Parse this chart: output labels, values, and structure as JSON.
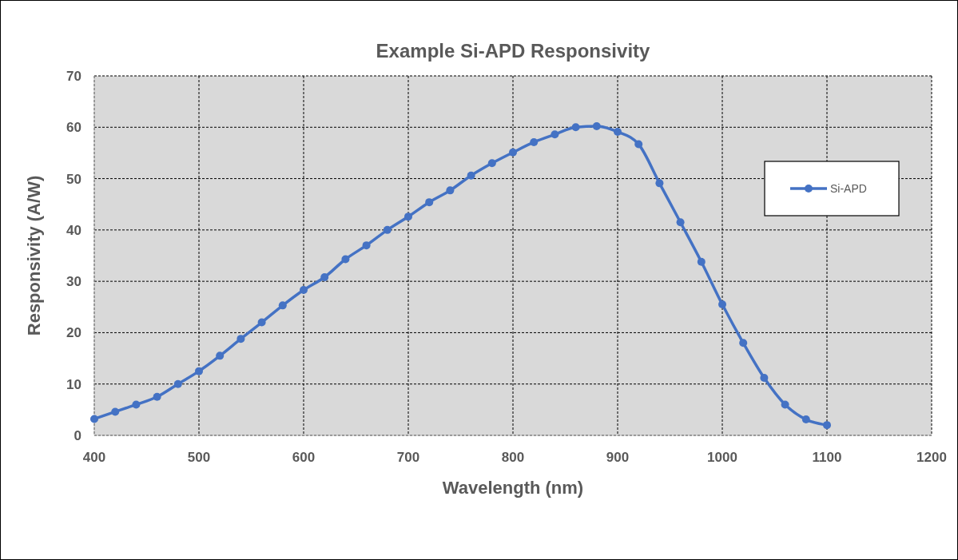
{
  "chart_data": {
    "type": "line",
    "title": "Example Si-APD Responsivity",
    "xlabel": "Wavelength (nm)",
    "ylabel": "Responsivity (A/W)",
    "x": [
      400,
      420,
      440,
      460,
      480,
      500,
      520,
      540,
      560,
      580,
      600,
      620,
      640,
      660,
      680,
      700,
      720,
      740,
      760,
      780,
      800,
      820,
      840,
      860,
      880,
      900,
      920,
      940,
      960,
      980,
      1000,
      1020,
      1040,
      1060,
      1080,
      1100
    ],
    "series": [
      {
        "name": "Si-APD",
        "color": "#4472c4",
        "values": [
          3.2,
          4.6,
          6.0,
          7.5,
          10.0,
          12.5,
          15.5,
          18.8,
          22.0,
          25.3,
          28.3,
          30.8,
          34.3,
          37.0,
          40.0,
          42.6,
          45.4,
          47.7,
          50.6,
          53.0,
          55.1,
          57.1,
          58.6,
          60.0,
          60.2,
          59.1,
          56.7,
          49.1,
          41.5,
          33.8,
          25.5,
          18.0,
          11.2,
          6.0,
          3.1,
          2.0
        ]
      }
    ],
    "xlim": [
      400,
      1200
    ],
    "xticks": [
      400,
      500,
      600,
      700,
      800,
      900,
      1000,
      1100,
      1200
    ],
    "ylim": [
      0,
      70
    ],
    "yticks": [
      0,
      10,
      20,
      30,
      40,
      50,
      60,
      70
    ],
    "grid": true,
    "legend": "right",
    "marker": "circle",
    "line_style": "solid"
  }
}
